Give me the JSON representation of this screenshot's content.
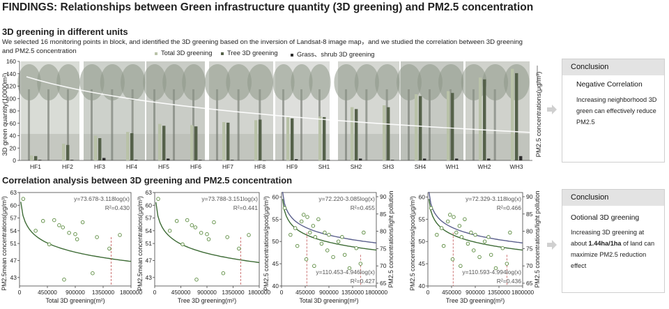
{
  "title": "FINDINGS: Relationships between Green infrastructure quantity (3D greening) and PM2.5 concentration",
  "section1": {
    "heading": "3D greening in different units",
    "description": "We selected 16 monitoring points in block, and identified the 3D greening based on the inversion of Landsat-8 image map，and we studied the correlation between 3D greening and PM2.5 concentration",
    "legend": [
      {
        "label": "Total 3D greening",
        "color": "#b9c2a8"
      },
      {
        "label": "Tree 3D greening",
        "color": "#55614a"
      },
      {
        "label": "Grass、shrub 3D greening",
        "color": "#2f2f2f"
      }
    ],
    "conclusion": {
      "header": "Conclusion",
      "title": "Negative Correlation",
      "body": "Increasing neighborhood 3D green can effectively reduce PM2.5"
    }
  },
  "section2": {
    "heading": "Correlation analysis between 3D greening and PM2.5 concentration",
    "conclusion": {
      "header": "Conclusion",
      "title": "Ootional 3D greening",
      "body_pre": "Increasing 3D greening at about ",
      "body_bold": "1.44ha/1ha",
      "body_post": " of land can maximize PM2.5 reduction effect"
    }
  },
  "colors": {
    "total": "#b9c2a8",
    "tree": "#55614a",
    "grass": "#2f2f2f",
    "fit_green": "#3d6b35",
    "fit_blue": "#5a5f8c",
    "point": "#5a8a3e"
  },
  "chart_data": [
    {
      "type": "bar",
      "categories": [
        "HF1",
        "HF2",
        "HF3",
        "HF4",
        "HF5",
        "HF6",
        "HF7",
        "HF8",
        "HF9",
        "SH1",
        "SH2",
        "SH3",
        "SH4",
        "WH1",
        "WH2",
        "WH3"
      ],
      "series": [
        {
          "name": "Total 3D greening",
          "values": [
            8,
            27,
            40,
            46,
            59,
            57,
            62,
            65,
            70,
            71,
            86,
            89,
            107,
            112,
            134,
            148
          ]
        },
        {
          "name": "Tree 3D greening",
          "values": [
            7,
            25,
            36,
            44,
            56,
            55,
            61,
            66,
            68,
            70,
            83,
            86,
            104,
            109,
            131,
            141
          ]
        },
        {
          "name": "Grass、shrub 3D greening",
          "values": [
            1,
            1,
            4,
            1,
            3,
            1,
            1,
            0,
            2,
            1,
            3,
            1,
            3,
            3,
            3,
            7
          ]
        }
      ],
      "ylabel": "3D green quantity(10000m²)",
      "y2label": "PM2.5 concentrations(μg/m³)",
      "yticks": [
        0,
        20,
        40,
        60,
        80,
        100,
        120,
        140,
        160
      ],
      "ylim": [
        0,
        160
      ],
      "trend_line": "descending curve of PM2.5 concentration across monitoring points"
    },
    {
      "type": "scatter",
      "ylabel": "PM2.5mean concentrations(μg/m³)",
      "xlabel": "Total 3D greening(m²)",
      "xticks": [
        "0",
        "450000",
        "900000",
        "1350000",
        "1800000"
      ],
      "yticks": [
        43,
        47,
        51,
        54,
        57,
        60,
        63
      ],
      "xlim": [
        0,
        1800000
      ],
      "ylim": [
        41,
        63
      ],
      "equation": "y=73.678-3.118log(x)",
      "r2": "R²=0.430",
      "points": [
        [
          60000,
          61.5
        ],
        [
          260000,
          54
        ],
        [
          380000,
          56.3
        ],
        [
          480000,
          50.8
        ],
        [
          560000,
          56.5
        ],
        [
          640000,
          55.3
        ],
        [
          700000,
          54.8
        ],
        [
          720000,
          42.5
        ],
        [
          800000,
          53.5
        ],
        [
          900000,
          53.2
        ],
        [
          930000,
          52
        ],
        [
          1020000,
          56
        ],
        [
          1180000,
          44
        ],
        [
          1250000,
          52.5
        ],
        [
          1450000,
          49.8
        ],
        [
          1620000,
          53
        ]
      ],
      "optimum_x": 1480000
    },
    {
      "type": "scatter",
      "ylabel": "PM2.5mean concentrations(μg/m³)",
      "xlabel": "Tree 3D greening(m²)",
      "xticks": [
        "0",
        "450000",
        "900000",
        "1350000",
        "1800000"
      ],
      "yticks": [
        43,
        47,
        51,
        54,
        57,
        60,
        63
      ],
      "xlim": [
        0,
        1800000
      ],
      "ylim": [
        41,
        63
      ],
      "equation": "y=73.788-3.151log(x)",
      "r2": "R²=0.441",
      "points": [
        [
          60000,
          61.5
        ],
        [
          260000,
          54
        ],
        [
          380000,
          56.3
        ],
        [
          480000,
          50.8
        ],
        [
          560000,
          56.5
        ],
        [
          640000,
          55.3
        ],
        [
          700000,
          54.8
        ],
        [
          720000,
          42.5
        ],
        [
          800000,
          53.5
        ],
        [
          900000,
          53.2
        ],
        [
          930000,
          52
        ],
        [
          1020000,
          56
        ],
        [
          1180000,
          44
        ],
        [
          1250000,
          52.5
        ],
        [
          1450000,
          49.8
        ],
        [
          1620000,
          53
        ]
      ],
      "optimum_x": 1480000
    },
    {
      "type": "scatter",
      "ylabel": "PM2.5 concentrations/good(μg/m³)",
      "y2label": "PM2.5 concentrations/light pollution",
      "xlabel": "Total 3D greening(m²)",
      "xticks": [
        "0",
        "450000",
        "900000",
        "1350000",
        "1800000"
      ],
      "yticks": [
        40,
        45,
        50,
        55,
        60
      ],
      "y2ticks": [
        65,
        70,
        75,
        80,
        85,
        90
      ],
      "xlim": [
        0,
        1800000
      ],
      "ylim": [
        40,
        61
      ],
      "equation_good": "y=72.220-3.085log(x)",
      "r2_good": "R²=0.455",
      "equation_light": "y=110.453-4.946log(x)",
      "r2_light": "R²=0.427",
      "points": [
        [
          60000,
          57.5
        ],
        [
          170000,
          51.5
        ],
        [
          260000,
          53
        ],
        [
          300000,
          49
        ],
        [
          380000,
          54.5
        ],
        [
          420000,
          56
        ],
        [
          470000,
          46
        ],
        [
          490000,
          55.5
        ],
        [
          540000,
          52
        ],
        [
          600000,
          53.5
        ],
        [
          620000,
          44.5
        ],
        [
          640000,
          51
        ],
        [
          700000,
          55
        ],
        [
          760000,
          49.5
        ],
        [
          820000,
          52
        ],
        [
          870000,
          48
        ],
        [
          900000,
          51.5
        ],
        [
          980000,
          46.5
        ],
        [
          1080000,
          50
        ],
        [
          1150000,
          51
        ],
        [
          1200000,
          47
        ],
        [
          1290000,
          44
        ],
        [
          1420000,
          48.5
        ],
        [
          1500000,
          45
        ],
        [
          1560000,
          52
        ]
      ],
      "optimum_x": [
        480000,
        1500000
      ]
    },
    {
      "type": "scatter",
      "ylabel": "PM2.5 concentrations/good(μg/m³)",
      "y2label": "PM2.5 concentrations/light pollution",
      "xlabel": "Tree 3D greening(m²)",
      "xticks": [
        "0",
        "450000",
        "900000",
        "1350000",
        "1800000"
      ],
      "yticks": [
        40,
        45,
        50,
        55,
        60
      ],
      "y2ticks": [
        65,
        70,
        75,
        80,
        85,
        90
      ],
      "xlim": [
        0,
        1800000
      ],
      "ylim": [
        40,
        61
      ],
      "equation_good": "y=72.329-3.118log(x)",
      "r2_good": "R²=0.466",
      "equation_light": "y=110.593-4.994log(x)",
      "r2_light": "R²=0.436",
      "points": [
        [
          60000,
          57.5
        ],
        [
          170000,
          51.5
        ],
        [
          260000,
          53
        ],
        [
          300000,
          49
        ],
        [
          380000,
          54.5
        ],
        [
          420000,
          56
        ],
        [
          470000,
          46
        ],
        [
          490000,
          55.5
        ],
        [
          540000,
          52
        ],
        [
          600000,
          53.5
        ],
        [
          620000,
          44.5
        ],
        [
          640000,
          51
        ],
        [
          700000,
          55
        ],
        [
          760000,
          49.5
        ],
        [
          820000,
          52
        ],
        [
          870000,
          48
        ],
        [
          900000,
          51.5
        ],
        [
          980000,
          46.5
        ],
        [
          1080000,
          50
        ],
        [
          1150000,
          51
        ],
        [
          1200000,
          47
        ],
        [
          1290000,
          44
        ],
        [
          1420000,
          48.5
        ],
        [
          1500000,
          45
        ],
        [
          1560000,
          52
        ]
      ],
      "optimum_x": [
        480000,
        1500000
      ]
    }
  ]
}
